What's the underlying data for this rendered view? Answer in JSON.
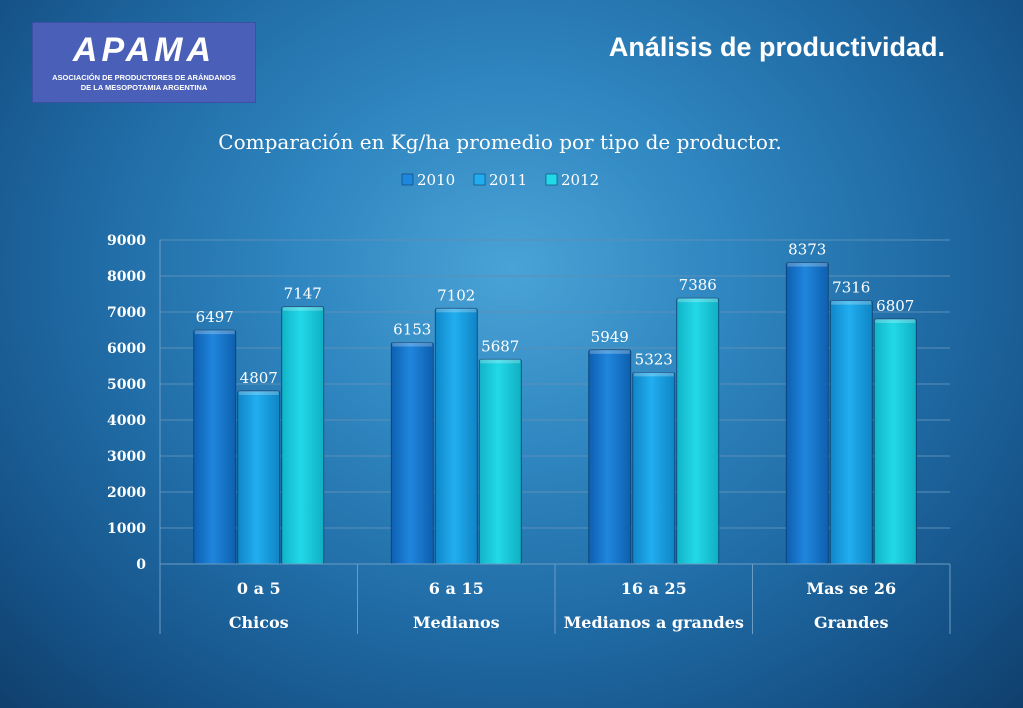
{
  "logo": {
    "wordmark": "APAMA",
    "subtitle": "ASOCIACIÓN DE PRODUCTORES DE ARÁNDANOS\nDE LA MESOPOTAMIA ARGENTINA"
  },
  "page_title": "Análisis de productividad.",
  "colors": {
    "series_2010": "#1f86dd",
    "series_2011": "#21aef0",
    "series_2012": "#22d9e8"
  },
  "chart_data": {
    "type": "bar",
    "title": "Comparación en Kg/ha promedio por tipo de productor.",
    "categories": [
      "0 a 5",
      "6 a 15",
      "16 a 25",
      "Mas se 26"
    ],
    "category_groups": [
      "Chicos",
      "Medianos",
      "Medianos a grandes",
      "Grandes"
    ],
    "series": [
      {
        "name": "2010",
        "values": [
          6497,
          6153,
          5949,
          8373
        ]
      },
      {
        "name": "2011",
        "values": [
          4807,
          7102,
          5323,
          7316
        ]
      },
      {
        "name": "2012",
        "values": [
          7147,
          5687,
          7386,
          6807
        ]
      }
    ],
    "ylim": [
      0,
      9000
    ],
    "yticks": [
      0,
      1000,
      2000,
      3000,
      4000,
      5000,
      6000,
      7000,
      8000,
      9000
    ],
    "grid": true,
    "legend": "top"
  }
}
